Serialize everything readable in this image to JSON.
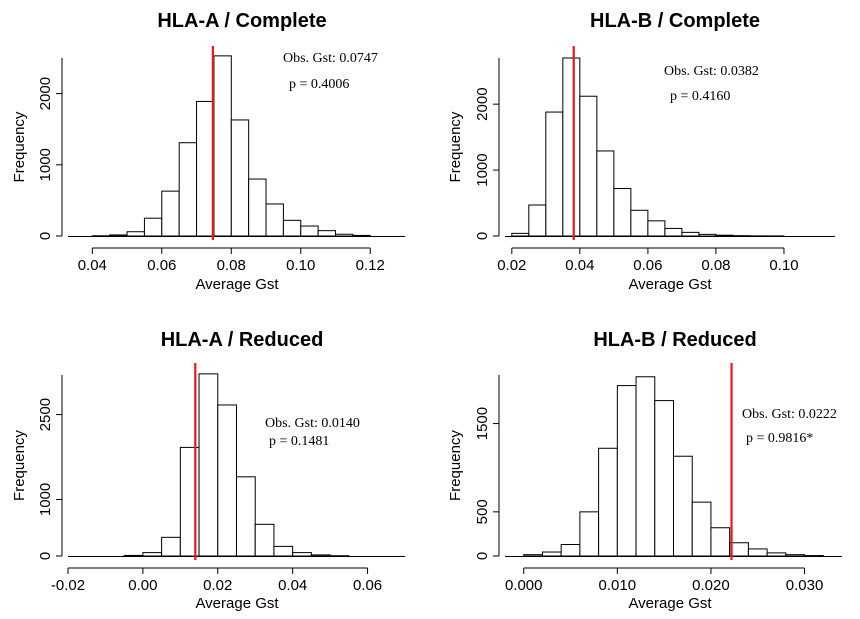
{
  "chart_data": [
    {
      "type": "bar",
      "title": "HLA-A / Complete",
      "xlabel": "Average Gst",
      "ylabel": "Frequency",
      "xlim": [
        0.033,
        0.13
      ],
      "ylim": [
        0,
        2500
      ],
      "xticks": [
        "0.04",
        "0.06",
        "0.08",
        "0.10",
        "0.12"
      ],
      "yticks": [
        "0",
        "1000",
        "2000"
      ],
      "bin_width": 0.005,
      "bins": [
        {
          "x0": 0.04,
          "count": 3
        },
        {
          "x0": 0.045,
          "count": 15
        },
        {
          "x0": 0.05,
          "count": 60
        },
        {
          "x0": 0.055,
          "count": 250
        },
        {
          "x0": 0.06,
          "count": 630
        },
        {
          "x0": 0.065,
          "count": 1310
        },
        {
          "x0": 0.07,
          "count": 1890
        },
        {
          "x0": 0.075,
          "count": 2530
        },
        {
          "x0": 0.08,
          "count": 1630
        },
        {
          "x0": 0.085,
          "count": 800
        },
        {
          "x0": 0.09,
          "count": 450
        },
        {
          "x0": 0.095,
          "count": 220
        },
        {
          "x0": 0.1,
          "count": 140
        },
        {
          "x0": 0.105,
          "count": 75
        },
        {
          "x0": 0.11,
          "count": 25
        },
        {
          "x0": 0.115,
          "count": 8
        }
      ],
      "observed_value": 0.0747,
      "annotations": [
        "Obs. Gst: 0.0747",
        "p = 0.4006"
      ]
    },
    {
      "type": "bar",
      "title": "HLA-B / Complete",
      "xlabel": "Average Gst",
      "ylabel": "Frequency",
      "xlim": [
        0.018,
        0.115
      ],
      "ylim": [
        0,
        2700
      ],
      "xticks": [
        "0.02",
        "0.04",
        "0.06",
        "0.08",
        "0.10"
      ],
      "yticks": [
        "0",
        "1000",
        "2000"
      ],
      "bin_width": 0.005,
      "bins": [
        {
          "x0": 0.02,
          "count": 40
        },
        {
          "x0": 0.025,
          "count": 470
        },
        {
          "x0": 0.03,
          "count": 1880
        },
        {
          "x0": 0.035,
          "count": 2700
        },
        {
          "x0": 0.04,
          "count": 2120
        },
        {
          "x0": 0.045,
          "count": 1290
        },
        {
          "x0": 0.05,
          "count": 720
        },
        {
          "x0": 0.055,
          "count": 390
        },
        {
          "x0": 0.06,
          "count": 230
        },
        {
          "x0": 0.065,
          "count": 115
        },
        {
          "x0": 0.07,
          "count": 55
        },
        {
          "x0": 0.075,
          "count": 25
        },
        {
          "x0": 0.08,
          "count": 12
        },
        {
          "x0": 0.085,
          "count": 5
        },
        {
          "x0": 0.09,
          "count": 2
        },
        {
          "x0": 0.095,
          "count": 1
        }
      ],
      "observed_value": 0.0382,
      "annotations": [
        "Obs. Gst: 0.0382",
        "p = 0.4160"
      ]
    },
    {
      "type": "bar",
      "title": "HLA-A / Reduced",
      "xlabel": "Average Gst",
      "ylabel": "Frequency",
      "xlim": [
        -0.02,
        0.07
      ],
      "ylim": [
        0,
        3200
      ],
      "xticks": [
        "-0.02",
        "0.00",
        "0.02",
        "0.04",
        "0.06"
      ],
      "yticks": [
        "0",
        "1000",
        "2500"
      ],
      "bin_width": 0.005,
      "bins": [
        {
          "x0": -0.005,
          "count": 10
        },
        {
          "x0": 0.0,
          "count": 60
        },
        {
          "x0": 0.005,
          "count": 330
        },
        {
          "x0": 0.01,
          "count": 1920
        },
        {
          "x0": 0.015,
          "count": 3220
        },
        {
          "x0": 0.02,
          "count": 2670
        },
        {
          "x0": 0.025,
          "count": 1400
        },
        {
          "x0": 0.03,
          "count": 560
        },
        {
          "x0": 0.035,
          "count": 170
        },
        {
          "x0": 0.04,
          "count": 60
        },
        {
          "x0": 0.045,
          "count": 20
        },
        {
          "x0": 0.05,
          "count": 5
        }
      ],
      "observed_value": 0.014,
      "annotations": [
        "Obs. Gst: 0.0140",
        "p = 0.1481"
      ]
    },
    {
      "type": "bar",
      "title": "HLA-B / Reduced",
      "xlabel": "Average Gst",
      "ylabel": "Frequency",
      "xlim": [
        -0.002,
        0.034
      ],
      "ylim": [
        0,
        2050
      ],
      "xticks": [
        "0.000",
        "0.010",
        "0.020",
        "0.030"
      ],
      "yticks": [
        "0",
        "500",
        "1500"
      ],
      "bin_width": 0.002,
      "bins": [
        {
          "x0": 0.0,
          "count": 15
        },
        {
          "x0": 0.002,
          "count": 45
        },
        {
          "x0": 0.004,
          "count": 130
        },
        {
          "x0": 0.006,
          "count": 500
        },
        {
          "x0": 0.008,
          "count": 1220
        },
        {
          "x0": 0.01,
          "count": 1930
        },
        {
          "x0": 0.012,
          "count": 2030
        },
        {
          "x0": 0.014,
          "count": 1760
        },
        {
          "x0": 0.016,
          "count": 1130
        },
        {
          "x0": 0.018,
          "count": 610
        },
        {
          "x0": 0.02,
          "count": 320
        },
        {
          "x0": 0.022,
          "count": 150
        },
        {
          "x0": 0.024,
          "count": 80
        },
        {
          "x0": 0.026,
          "count": 35
        },
        {
          "x0": 0.028,
          "count": 15
        },
        {
          "x0": 0.03,
          "count": 5
        }
      ],
      "observed_value": 0.0222,
      "annotations": [
        "Obs. Gst: 0.0222",
        "p = 0.9816*"
      ]
    }
  ]
}
